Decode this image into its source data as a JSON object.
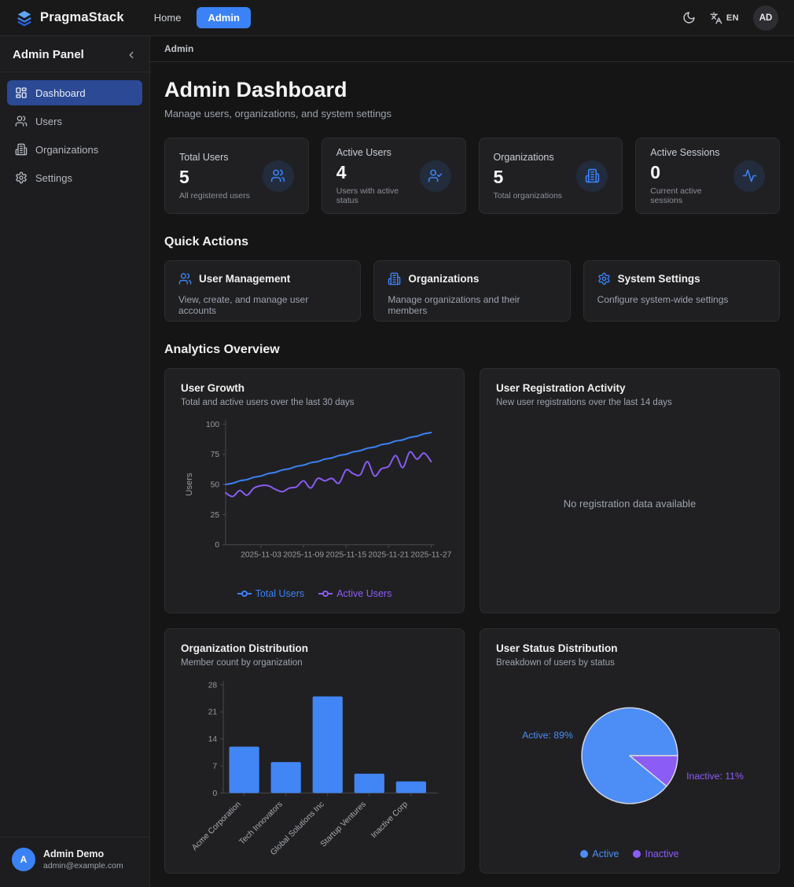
{
  "navbar": {
    "brand": "PragmaStack",
    "links": [
      {
        "label": "Home",
        "active": false
      },
      {
        "label": "Admin",
        "active": true
      }
    ],
    "locale": "EN",
    "avatar_initials": "AD"
  },
  "sidebar": {
    "title": "Admin Panel",
    "items": [
      {
        "label": "Dashboard",
        "icon": "dashboard-icon",
        "active": true
      },
      {
        "label": "Users",
        "icon": "users-icon",
        "active": false
      },
      {
        "label": "Organizations",
        "icon": "building-icon",
        "active": false
      },
      {
        "label": "Settings",
        "icon": "gear-icon",
        "active": false
      }
    ],
    "user": {
      "initial": "A",
      "name": "Admin Demo",
      "email": "admin@example.com"
    }
  },
  "breadcrumb": "Admin",
  "header": {
    "title": "Admin Dashboard",
    "subtitle": "Manage users, organizations, and system settings"
  },
  "stats": [
    {
      "label": "Total Users",
      "value": "5",
      "sub": "All registered users",
      "icon": "users-icon"
    },
    {
      "label": "Active Users",
      "value": "4",
      "sub": "Users with active status",
      "icon": "user-check-icon"
    },
    {
      "label": "Organizations",
      "value": "5",
      "sub": "Total organizations",
      "icon": "building-icon"
    },
    {
      "label": "Active Sessions",
      "value": "0",
      "sub": "Current active sessions",
      "icon": "activity-icon"
    }
  ],
  "quick_actions": {
    "title": "Quick Actions",
    "cards": [
      {
        "icon": "users-icon",
        "title": "User Management",
        "description": "View, create, and manage user accounts"
      },
      {
        "icon": "building-icon",
        "title": "Organizations",
        "description": "Manage organizations and their members"
      },
      {
        "icon": "gear-icon",
        "title": "System Settings",
        "description": "Configure system-wide settings"
      }
    ]
  },
  "analytics": {
    "title": "Analytics Overview",
    "cards": [
      {
        "title": "User Growth",
        "subtitle": "Total and active users over the last 30 days"
      },
      {
        "title": "User Registration Activity",
        "subtitle": "New user registrations over the last 14 days",
        "empty_text": "No registration data available"
      },
      {
        "title": "Organization Distribution",
        "subtitle": "Member count by organization"
      },
      {
        "title": "User Status Distribution",
        "subtitle": "Breakdown of users by status"
      }
    ]
  },
  "chart_data": [
    {
      "type": "line",
      "title": "User Growth",
      "ylabel": "Users",
      "ylim": [
        0,
        100
      ],
      "yticks": [
        0,
        25,
        50,
        75,
        100
      ],
      "x": [
        "2025-10-29",
        "2025-10-30",
        "2025-10-31",
        "2025-11-01",
        "2025-11-02",
        "2025-11-03",
        "2025-11-04",
        "2025-11-05",
        "2025-11-06",
        "2025-11-07",
        "2025-11-08",
        "2025-11-09",
        "2025-11-10",
        "2025-11-11",
        "2025-11-12",
        "2025-11-13",
        "2025-11-14",
        "2025-11-15",
        "2025-11-16",
        "2025-11-17",
        "2025-11-18",
        "2025-11-19",
        "2025-11-20",
        "2025-11-21",
        "2025-11-22",
        "2025-11-23",
        "2025-11-24",
        "2025-11-25",
        "2025-11-26",
        "2025-11-27"
      ],
      "xtick_indices": [
        5,
        11,
        17,
        23,
        29
      ],
      "xtick_labels": [
        "2025-11-03",
        "2025-11-09",
        "2025-11-15",
        "2025-11-21",
        "2025-11-27"
      ],
      "series": [
        {
          "name": "Total Users",
          "color": "#3b82f6",
          "values": [
            50,
            51,
            53,
            54,
            56,
            57,
            59,
            60,
            62,
            63,
            65,
            66,
            68,
            69,
            71,
            72,
            74,
            75,
            77,
            78,
            80,
            81,
            83,
            84,
            86,
            87,
            89,
            90,
            92,
            93
          ]
        },
        {
          "name": "Active Users",
          "color": "#8b5cf6",
          "values": [
            43,
            40,
            45,
            41,
            47,
            49,
            49,
            46,
            44,
            47,
            48,
            53,
            47,
            55,
            53,
            55,
            51,
            62,
            59,
            58,
            69,
            57,
            63,
            65,
            74,
            64,
            77,
            71,
            76,
            69
          ]
        }
      ],
      "legend_position": "bottom",
      "grid": false
    },
    {
      "type": "bar",
      "title": "Organization Distribution",
      "categories": [
        "Acme Corporation",
        "Tech Innovators",
        "Global Solutions Inc",
        "Startup Ventures",
        "Inactive Corp"
      ],
      "values": [
        12,
        8,
        25,
        5,
        3
      ],
      "ylim": [
        0,
        28
      ],
      "yticks": [
        0,
        7,
        14,
        21,
        28
      ],
      "bar_color": "#4285f4",
      "grid": false
    },
    {
      "type": "pie",
      "title": "User Status Distribution",
      "labels": [
        "Active",
        "Inactive"
      ],
      "values": [
        89,
        11
      ],
      "value_suffix": "%",
      "colors": [
        "#4d8df6",
        "#8b5cf6"
      ],
      "slice_labels": [
        "Active: 89%",
        "Inactive: 11%"
      ],
      "legend_position": "bottom"
    }
  ]
}
